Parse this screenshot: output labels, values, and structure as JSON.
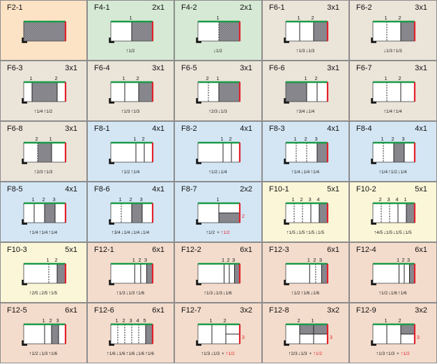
{
  "colors": {
    "orange": "#fde3c6",
    "green": "#d6e9d4",
    "tan": "#ebe4d9",
    "blue": "#d4e6f4",
    "yellow": "#fbf6d8",
    "salmon": "#f4dccc",
    "top_edge": "#1a9a48",
    "side_edge": "#e2202a",
    "hatch": "#8e8e94"
  },
  "cells": [
    {
      "code": "F2-1",
      "dim": "",
      "bg": "orange",
      "cols": [
        1
      ],
      "shaded": [
        0
      ],
      "labels": [],
      "f": []
    },
    {
      "code": "F4-1",
      "dim": "2x1",
      "bg": "green",
      "cols": [
        1,
        1
      ],
      "shaded": [
        1
      ],
      "labels": [
        {
          "b": 1,
          "t": "1"
        }
      ],
      "f": [
        {
          "d": "u",
          "v": "1/2"
        }
      ]
    },
    {
      "code": "F4-2",
      "dim": "2x1",
      "bg": "green",
      "cols": [
        1,
        1
      ],
      "dashed": [
        1
      ],
      "shaded": [
        1
      ],
      "labels": [
        {
          "b": 1,
          "t": "1"
        }
      ],
      "f": [
        {
          "d": "d",
          "v": "1/2"
        }
      ]
    },
    {
      "code": "F6-1",
      "dim": "3x1",
      "bg": "tan",
      "cols": [
        1,
        1,
        1
      ],
      "shaded": [
        2
      ],
      "labels": [
        {
          "b": 1,
          "t": "1"
        },
        {
          "b": 2,
          "t": "2"
        }
      ],
      "f": [
        {
          "d": "u",
          "v": "1/3"
        },
        {
          "d": "d",
          "v": "1/3"
        }
      ]
    },
    {
      "code": "F6-2",
      "dim": "3x1",
      "bg": "tan",
      "cols": [
        1,
        1,
        1
      ],
      "dashed": [
        1
      ],
      "shaded": [
        2
      ],
      "labels": [
        {
          "b": 1,
          "t": "1"
        },
        {
          "b": 2,
          "t": "2"
        }
      ],
      "f": [
        {
          "d": "d",
          "v": "1/3"
        },
        {
          "d": "u",
          "v": "1/3"
        }
      ]
    },
    {
      "code": "F6-3",
      "dim": "3x1",
      "bg": "tan",
      "cols": [
        1,
        3,
        1
      ],
      "shaded": [
        1
      ],
      "labels": [
        {
          "b": 1,
          "t": "1"
        },
        {
          "b": 2,
          "t": "2"
        }
      ],
      "f": [
        {
          "d": "u",
          "v": "1/4"
        },
        {
          "d": "u",
          "v": "1/2"
        }
      ]
    },
    {
      "code": "F6-4",
      "dim": "3x1",
      "bg": "tan",
      "cols": [
        1,
        1,
        1
      ],
      "shaded": [
        2
      ],
      "labels": [
        {
          "b": 1,
          "t": "1"
        },
        {
          "b": 2,
          "t": "2"
        }
      ],
      "f": [
        {
          "d": "u",
          "v": "1/3"
        },
        {
          "d": "u",
          "v": "1/3"
        }
      ]
    },
    {
      "code": "F6-5",
      "dim": "3x1",
      "bg": "tan",
      "cols": [
        1,
        1,
        2
      ],
      "dashed": [
        1
      ],
      "shaded": [
        2
      ],
      "labels": [
        {
          "b": 1,
          "t": "2"
        },
        {
          "b": 2,
          "t": "1"
        }
      ],
      "f": [
        {
          "d": "u",
          "v": "2/3"
        },
        {
          "d": "d",
          "v": "1/3"
        }
      ]
    },
    {
      "code": "F6-6",
      "dim": "3x1",
      "bg": "tan",
      "cols": [
        2,
        1,
        1
      ],
      "shaded": [
        0
      ],
      "labels": [
        {
          "b": 1,
          "t": "1"
        },
        {
          "b": 2,
          "t": "2"
        }
      ],
      "f": [
        {
          "d": "u",
          "v": "3/4"
        },
        {
          "d": "d",
          "v": "1/4"
        }
      ]
    },
    {
      "code": "F6-7",
      "dim": "3x1",
      "bg": "tan",
      "cols": [
        1,
        1,
        1
      ],
      "dashed": [
        1
      ],
      "shaded": [],
      "labels": [
        {
          "b": 1,
          "t": "1"
        },
        {
          "b": 2,
          "t": "2"
        }
      ],
      "f": [
        {
          "d": "u",
          "v": "1/4"
        },
        {
          "d": "u",
          "v": "1/4"
        }
      ]
    },
    {
      "code": "F6-8",
      "dim": "3x1",
      "bg": "tan",
      "cols": [
        1,
        1,
        1
      ],
      "dashed": [
        1
      ],
      "shaded": [
        1
      ],
      "labels": [
        {
          "b": 1,
          "t": "2"
        },
        {
          "b": 2,
          "t": "1"
        }
      ],
      "f": [
        {
          "d": "u",
          "v": "2/3"
        },
        {
          "d": "u",
          "v": "1/3"
        }
      ]
    },
    {
      "code": "F8-1",
      "dim": "4x1",
      "bg": "blue",
      "cols": [
        3,
        1,
        1
      ],
      "shaded": [],
      "labels": [
        {
          "b": 1,
          "t": "1"
        },
        {
          "b": 2,
          "t": "2"
        }
      ],
      "f": [
        {
          "d": "u",
          "v": "1/2"
        },
        {
          "d": "u",
          "v": "1/4"
        }
      ]
    },
    {
      "code": "F8-2",
      "dim": "4x1",
      "bg": "blue",
      "cols": [
        3,
        1,
        1
      ],
      "shaded": [],
      "labels": [
        {
          "b": 1,
          "t": "1"
        },
        {
          "b": 2,
          "t": "2"
        }
      ],
      "f": [
        {
          "d": "u",
          "v": "1/2"
        },
        {
          "d": "d",
          "v": "1/4"
        }
      ]
    },
    {
      "code": "F8-3",
      "dim": "4x1",
      "bg": "blue",
      "cols": [
        1,
        1,
        1,
        1
      ],
      "dashed": [
        1,
        2
      ],
      "shaded": [
        3
      ],
      "labels": [
        {
          "b": 1,
          "t": "1"
        },
        {
          "b": 2,
          "t": "2"
        },
        {
          "b": 3,
          "t": "3"
        }
      ],
      "f": [
        {
          "d": "u",
          "v": "1/4"
        },
        {
          "d": "d",
          "v": "1/4"
        },
        {
          "d": "u",
          "v": "1/4"
        }
      ]
    },
    {
      "code": "F8-4",
      "dim": "4x1",
      "bg": "blue",
      "cols": [
        1,
        1,
        1,
        1
      ],
      "dashed": [
        1
      ],
      "shaded": [
        2
      ],
      "labels": [
        {
          "b": 1,
          "t": "1"
        },
        {
          "b": 2,
          "t": "2"
        },
        {
          "b": 3,
          "t": "3"
        }
      ],
      "f": [
        {
          "d": "u",
          "v": "1/4"
        },
        {
          "d": "u",
          "v": "1/2"
        },
        {
          "d": "d",
          "v": "1/4"
        }
      ]
    },
    {
      "code": "F8-5",
      "dim": "4x1",
      "bg": "blue",
      "cols": [
        1,
        1,
        1,
        1
      ],
      "shaded": [
        2
      ],
      "labels": [
        {
          "b": 1,
          "t": "1"
        },
        {
          "b": 2,
          "t": "2"
        },
        {
          "b": 3,
          "t": "3"
        }
      ],
      "f": [
        {
          "d": "u",
          "v": "1/4"
        },
        {
          "d": "u",
          "v": "1/4"
        },
        {
          "d": "u",
          "v": "1/4"
        }
      ]
    },
    {
      "code": "F8-6",
      "dim": "4x1",
      "bg": "blue",
      "cols": [
        1,
        1,
        1,
        1
      ],
      "dashed": [
        1
      ],
      "shaded": [
        2
      ],
      "labels": [
        {
          "b": 1,
          "t": "1"
        },
        {
          "b": 2,
          "t": "2"
        },
        {
          "b": 3,
          "t": "3"
        }
      ],
      "f": [
        {
          "d": "u",
          "v": "3/4"
        },
        {
          "d": "d",
          "v": "1/4"
        },
        {
          "d": "d",
          "v": "1/4"
        },
        {
          "d": "d",
          "v": "1/4"
        }
      ]
    },
    {
      "code": "F8-7",
      "dim": "2x2",
      "bg": "blue",
      "cols": [
        1,
        1
      ],
      "split": {
        "col": 1,
        "shade": "bottom"
      },
      "shaded": [],
      "labels": [
        {
          "b": 1,
          "t": "1"
        }
      ],
      "side_label": "2",
      "f": [
        {
          "d": "u",
          "v": "1/2"
        },
        {
          "d": "plus",
          "v": "+"
        },
        {
          "d": "ur",
          "v": "1/2"
        }
      ]
    },
    {
      "code": "F10-1",
      "dim": "5x1",
      "bg": "yellow",
      "cols": [
        1,
        1,
        1,
        1,
        1
      ],
      "dashed": [
        1,
        2
      ],
      "shaded": [
        4
      ],
      "labels": [
        {
          "b": 1,
          "t": "1"
        },
        {
          "b": 2,
          "t": "2"
        },
        {
          "b": 3,
          "t": "3"
        },
        {
          "b": 4,
          "t": "4"
        }
      ],
      "f": [
        {
          "d": "u",
          "v": "1/5"
        },
        {
          "d": "d",
          "v": "1/5"
        },
        {
          "d": "u",
          "v": "1/5"
        },
        {
          "d": "d",
          "v": "1/5"
        }
      ]
    },
    {
      "code": "F10-2",
      "dim": "5x1",
      "bg": "yellow",
      "cols": [
        1,
        1,
        1,
        1,
        1
      ],
      "dashed": [
        1,
        2
      ],
      "shaded": [
        4
      ],
      "labels": [
        {
          "b": 1,
          "t": "2"
        },
        {
          "b": 2,
          "t": "3"
        },
        {
          "b": 3,
          "t": "4"
        },
        {
          "b": 4,
          "t": "1"
        }
      ],
      "f": [
        {
          "d": "u",
          "v": "4/5"
        },
        {
          "d": "d",
          "v": "1/5"
        },
        {
          "d": "d",
          "v": "1/5"
        },
        {
          "d": "d",
          "v": "1/5"
        }
      ]
    },
    {
      "code": "F10-3",
      "dim": "5x1",
      "bg": "yellow",
      "cols": [
        3,
        1,
        1
      ],
      "dashed": [
        1
      ],
      "shaded": [
        2
      ],
      "labels": [
        {
          "b": 1,
          "t": "1"
        },
        {
          "b": 2,
          "t": "2"
        }
      ],
      "f": [
        {
          "d": "u",
          "v": "2/5"
        },
        {
          "d": "d",
          "v": "2/5"
        },
        {
          "d": "u",
          "v": "1/5"
        }
      ]
    },
    {
      "code": "F12-1",
      "dim": "6x1",
      "bg": "salmon",
      "cols": [
        4,
        1,
        1,
        1
      ],
      "shaded": [
        3
      ],
      "labels": [
        {
          "b": 1,
          "t": "1"
        },
        {
          "b": 2,
          "t": "2"
        },
        {
          "b": 3,
          "t": "3"
        }
      ],
      "f": [
        {
          "d": "u",
          "v": "1/3"
        },
        {
          "d": "d",
          "v": "1/3"
        },
        {
          "d": "u",
          "v": "1/6"
        }
      ]
    },
    {
      "code": "F12-2",
      "dim": "6x1",
      "bg": "salmon",
      "cols": [
        5,
        1,
        1,
        1
      ],
      "shaded": [
        3
      ],
      "labels": [
        {
          "b": 1,
          "t": "1"
        },
        {
          "b": 2,
          "t": "2"
        },
        {
          "b": 3,
          "t": "3"
        }
      ],
      "f": [
        {
          "d": "u",
          "v": "1/3"
        },
        {
          "d": "d",
          "v": "1/3"
        },
        {
          "d": "d",
          "v": "1/6"
        }
      ]
    },
    {
      "code": "F12-3",
      "dim": "6x1",
      "bg": "salmon",
      "cols": [
        4,
        1,
        1,
        1
      ],
      "dashed": [
        2
      ],
      "shaded": [
        3
      ],
      "labels": [
        {
          "b": 1,
          "t": "1"
        },
        {
          "b": 2,
          "t": "2"
        },
        {
          "b": 3,
          "t": "3"
        }
      ],
      "f": [
        {
          "d": "u",
          "v": "1/2"
        },
        {
          "d": "u",
          "v": "1/6"
        },
        {
          "d": "d",
          "v": "1/6"
        }
      ]
    },
    {
      "code": "F12-4",
      "dim": "6x1",
      "bg": "salmon",
      "cols": [
        5,
        1,
        1,
        1
      ],
      "shaded": [
        3
      ],
      "labels": [
        {
          "b": 1,
          "t": "1"
        },
        {
          "b": 2,
          "t": "2"
        },
        {
          "b": 3,
          "t": "3"
        }
      ],
      "f": [
        {
          "d": "u",
          "v": "1/2"
        },
        {
          "d": "d",
          "v": "1/6"
        },
        {
          "d": "u",
          "v": "1/6"
        }
      ]
    },
    {
      "code": "F12-5",
      "dim": "6x1",
      "bg": "salmon",
      "cols": [
        3,
        1,
        1,
        1
      ],
      "shaded": [
        2
      ],
      "labels": [
        {
          "b": 1,
          "t": "1"
        },
        {
          "b": 2,
          "t": "2"
        },
        {
          "b": 3,
          "t": "3"
        }
      ],
      "f": [
        {
          "d": "u",
          "v": "1/2"
        },
        {
          "d": "d",
          "v": "1/3"
        },
        {
          "d": "u",
          "v": "1/6"
        }
      ]
    },
    {
      "code": "F12-6",
      "dim": "6x1",
      "bg": "salmon",
      "cols": [
        1,
        1,
        1,
        1,
        1,
        1
      ],
      "dashed": [
        1,
        2,
        3,
        4
      ],
      "shaded": [
        5
      ],
      "labels": [
        {
          "b": 1,
          "t": "1"
        },
        {
          "b": 2,
          "t": "2"
        },
        {
          "b": 3,
          "t": "3"
        },
        {
          "b": 4,
          "t": "4"
        },
        {
          "b": 5,
          "t": "5"
        }
      ],
      "f": [
        {
          "d": "u",
          "v": "1/6"
        },
        {
          "d": "d",
          "v": "1/6"
        },
        {
          "d": "u",
          "v": "1/6"
        },
        {
          "d": "d",
          "v": "1/6"
        },
        {
          "d": "u",
          "v": "1/6"
        }
      ]
    },
    {
      "code": "F12-7",
      "dim": "3x2",
      "bg": "salmon",
      "cols": [
        1,
        1,
        1
      ],
      "split": {
        "col": 2,
        "shade": "none"
      },
      "shaded": [],
      "labels": [
        {
          "b": 1,
          "t": "1"
        },
        {
          "b": 2,
          "t": "2"
        }
      ],
      "side_label": "3",
      "f": [
        {
          "d": "u",
          "v": "1/3"
        },
        {
          "d": "d",
          "v": "1/3"
        },
        {
          "d": "plus",
          "v": "+"
        },
        {
          "d": "ur",
          "v": "1/2"
        }
      ]
    },
    {
      "code": "F12-8",
      "dim": "3x2",
      "bg": "salmon",
      "cols": [
        1,
        1,
        1
      ],
      "split": {
        "col": 1,
        "shade": "top"
      },
      "shaded": [],
      "labels": [
        {
          "b": 1,
          "t": "2"
        },
        {
          "b": 2,
          "t": "1"
        }
      ],
      "side_label": "3",
      "f": [
        {
          "d": "u",
          "v": "2/3"
        },
        {
          "d": "d",
          "v": "1/3"
        },
        {
          "d": "plus",
          "v": "+"
        },
        {
          "d": "ur",
          "v": "1/2"
        }
      ]
    },
    {
      "code": "F12-9",
      "dim": "3x2",
      "bg": "salmon",
      "cols": [
        1,
        1,
        1
      ],
      "split": {
        "col": 2,
        "shade": "top"
      },
      "shaded": [],
      "labels": [
        {
          "b": 1,
          "t": "1"
        },
        {
          "b": 2,
          "t": "2"
        }
      ],
      "side_label": "3",
      "f": [
        {
          "d": "u",
          "v": "1/3"
        },
        {
          "d": "u",
          "v": "1/3"
        },
        {
          "d": "plus",
          "v": "+"
        },
        {
          "d": "ur",
          "v": "1/2"
        }
      ]
    }
  ]
}
